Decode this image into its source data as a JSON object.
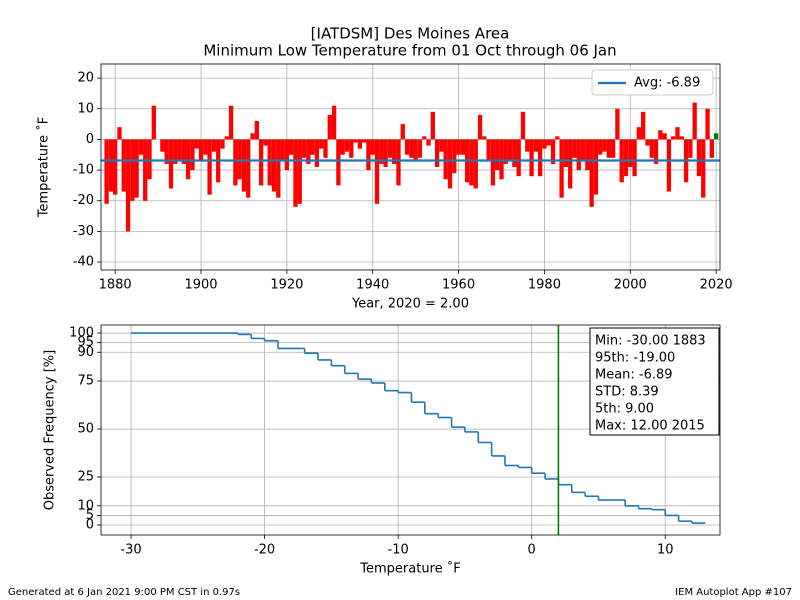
{
  "chart_data": [
    {
      "type": "bar",
      "title": "[IATDSM] Des Moines Area",
      "subtitle": "Minimum Low Temperature from 01 Oct through 06 Jan",
      "xlabel": "Year, 2020 = 2.00",
      "ylabel": "Temperature ˚F",
      "x": [
        1878,
        1879,
        1880,
        1881,
        1882,
        1883,
        1884,
        1885,
        1886,
        1887,
        1888,
        1889,
        1890,
        1891,
        1892,
        1893,
        1894,
        1895,
        1896,
        1897,
        1898,
        1899,
        1900,
        1901,
        1902,
        1903,
        1904,
        1905,
        1906,
        1907,
        1908,
        1909,
        1910,
        1911,
        1912,
        1913,
        1914,
        1915,
        1916,
        1917,
        1918,
        1919,
        1920,
        1921,
        1922,
        1923,
        1924,
        1925,
        1926,
        1927,
        1928,
        1929,
        1930,
        1931,
        1932,
        1933,
        1934,
        1935,
        1936,
        1937,
        1938,
        1939,
        1940,
        1941,
        1942,
        1943,
        1944,
        1945,
        1946,
        1947,
        1948,
        1949,
        1950,
        1951,
        1952,
        1953,
        1954,
        1955,
        1956,
        1957,
        1958,
        1959,
        1960,
        1961,
        1962,
        1963,
        1964,
        1965,
        1966,
        1967,
        1968,
        1969,
        1970,
        1971,
        1972,
        1973,
        1974,
        1975,
        1976,
        1977,
        1978,
        1979,
        1980,
        1981,
        1982,
        1983,
        1984,
        1985,
        1986,
        1987,
        1988,
        1989,
        1990,
        1991,
        1992,
        1993,
        1994,
        1995,
        1996,
        1997,
        1998,
        1999,
        2000,
        2001,
        2002,
        2003,
        2004,
        2005,
        2006,
        2007,
        2008,
        2009,
        2010,
        2011,
        2012,
        2013,
        2014,
        2015,
        2016,
        2017,
        2018,
        2019,
        2020
      ],
      "values": [
        -21,
        -17,
        -18,
        4,
        -17,
        -30,
        -20,
        -19,
        -5,
        -20,
        -13,
        11,
        0,
        -4,
        -8,
        -16,
        -8,
        -7,
        -8,
        -13,
        -10,
        -3,
        -7,
        -5,
        -18,
        -4,
        -14,
        -3,
        1,
        11,
        -15,
        -13,
        -17,
        -19,
        2,
        6,
        -15,
        -2,
        -15,
        -17,
        -19,
        -7,
        -10,
        -5,
        -22,
        -21,
        -6,
        -8,
        -5,
        -9,
        -3,
        -6,
        8,
        11,
        -15,
        -5,
        -4,
        -6,
        -1,
        -3,
        -1,
        -10,
        -5,
        -21,
        -8,
        -9,
        -6,
        -8,
        -15,
        5,
        -5,
        -6,
        -7,
        -6,
        1,
        -2,
        9,
        -9,
        -4,
        -13,
        -16,
        -11,
        -5,
        -5,
        -14,
        -15,
        -16,
        8,
        1,
        -7,
        -15,
        -10,
        -13,
        -8,
        -7,
        -9,
        -12,
        9,
        -4,
        -12,
        -4,
        -12,
        -3,
        -2,
        -8,
        1,
        -19,
        -9,
        -16,
        -6,
        -10,
        -7,
        -10,
        -22,
        -18,
        -5,
        -4,
        -6,
        -6,
        10,
        -14,
        -12,
        -9,
        -12,
        4,
        9,
        -2,
        -6,
        -8,
        3,
        2,
        -17,
        1,
        4,
        1,
        -14,
        -6,
        12,
        -12,
        -19,
        10,
        -6,
        2
      ],
      "colors": [
        "#ff0000",
        "#ff0000",
        "#ff0000",
        "#ff0000",
        "#ff0000",
        "#ff0000",
        "#ff0000",
        "#ff0000",
        "#ff0000",
        "#ff0000",
        "#ff0000",
        "#ff0000",
        "#ff0000",
        "#ff0000",
        "#ff0000",
        "#ff0000",
        "#ff0000",
        "#ff0000",
        "#ff0000",
        "#ff0000",
        "#ff0000",
        "#ff0000",
        "#ff0000",
        "#ff0000",
        "#ff0000",
        "#ff0000",
        "#ff0000",
        "#ff0000",
        "#ff0000",
        "#ff0000",
        "#ff0000",
        "#ff0000",
        "#ff0000",
        "#ff0000",
        "#ff0000",
        "#ff0000",
        "#ff0000",
        "#ff0000",
        "#ff0000",
        "#ff0000",
        "#ff0000",
        "#ff0000",
        "#ff0000",
        "#ff0000",
        "#ff0000",
        "#ff0000",
        "#ff0000",
        "#ff0000",
        "#ff0000",
        "#ff0000",
        "#ff0000",
        "#ff0000",
        "#ff0000",
        "#ff0000",
        "#ff0000",
        "#ff0000",
        "#ff0000",
        "#ff0000",
        "#ff0000",
        "#ff0000",
        "#ff0000",
        "#ff0000",
        "#ff0000",
        "#ff0000",
        "#ff0000",
        "#ff0000",
        "#ff0000",
        "#ff0000",
        "#ff0000",
        "#ff0000",
        "#ff0000",
        "#ff0000",
        "#ff0000",
        "#ff0000",
        "#ff0000",
        "#ff0000",
        "#ff0000",
        "#ff0000",
        "#ff0000",
        "#ff0000",
        "#ff0000",
        "#ff0000",
        "#ff0000",
        "#ff0000",
        "#ff0000",
        "#ff0000",
        "#ff0000",
        "#ff0000",
        "#ff0000",
        "#ff0000",
        "#ff0000",
        "#ff0000",
        "#ff0000",
        "#ff0000",
        "#ff0000",
        "#ff0000",
        "#ff0000",
        "#ff0000",
        "#ff0000",
        "#ff0000",
        "#ff0000",
        "#ff0000",
        "#ff0000",
        "#ff0000",
        "#ff0000",
        "#ff0000",
        "#ff0000",
        "#ff0000",
        "#ff0000",
        "#ff0000",
        "#ff0000",
        "#ff0000",
        "#ff0000",
        "#ff0000",
        "#ff0000",
        "#ff0000",
        "#ff0000",
        "#ff0000",
        "#ff0000",
        "#ff0000",
        "#ff0000",
        "#ff0000",
        "#ff0000",
        "#ff0000",
        "#ff0000",
        "#ff0000",
        "#ff0000",
        "#ff0000",
        "#ff0000",
        "#ff0000",
        "#ff0000",
        "#ff0000",
        "#ff0000",
        "#ff0000",
        "#ff0000",
        "#ff0000",
        "#ff0000",
        "#ff0000",
        "#ff0000",
        "#ff0000",
        "#ff0000",
        "#ff0000",
        "#008000"
      ],
      "avg": {
        "value": -6.89,
        "label": "Avg: -6.89"
      },
      "avg_color": "#1f77b4",
      "xlim": [
        1876.7,
        2020.9
      ],
      "xticks": [
        1880,
        1900,
        1920,
        1940,
        1960,
        1980,
        2000,
        2020
      ],
      "ylim": [
        -42.6,
        24.6
      ],
      "yticks": [
        -40,
        -30,
        -20,
        -10,
        0,
        10,
        20
      ],
      "grid": true,
      "legend": "upper right"
    },
    {
      "type": "step",
      "xlabel": "Temperature ˚F",
      "ylabel": "Observed Frequency [%]",
      "x": [
        -30,
        -22,
        -21,
        -20,
        -19,
        -17,
        -16,
        -15,
        -14,
        -13,
        -12,
        -11,
        -10,
        -9,
        -8,
        -7,
        -6,
        -5,
        -4,
        -3,
        -2,
        -1,
        0,
        1,
        2,
        3,
        4,
        5,
        7,
        8,
        9,
        10,
        11,
        12
      ],
      "values": [
        100,
        99.3,
        97.2,
        96,
        92,
        89.5,
        86,
        83,
        79,
        76,
        74,
        70,
        69,
        64,
        58,
        56,
        51,
        48.5,
        43,
        36,
        31,
        30,
        27,
        24,
        21,
        17,
        15,
        13,
        10,
        8.5,
        8,
        5,
        2,
        1
      ],
      "color": "#1f77b4",
      "vline": {
        "value": 2,
        "color": "#008000"
      },
      "stats": [
        "Min: -30.00 1883",
        "95th: -19.00",
        "Mean: -6.89",
        "STD: 8.39",
        "5th: 9.00",
        "Max: 12.00 2015"
      ],
      "xlim": [
        -32.25,
        14.1
      ],
      "xticks": [
        -30,
        -20,
        -10,
        0,
        10
      ],
      "ylim": [
        -5.2,
        104.2
      ],
      "yticks": [
        0,
        5,
        10,
        25,
        50,
        75,
        90,
        95,
        100
      ],
      "grid": true
    }
  ],
  "footer": {
    "left": "Generated at 6 Jan 2021 9:00 PM CST in 0.97s",
    "right": "IEM Autoplot App #107"
  }
}
